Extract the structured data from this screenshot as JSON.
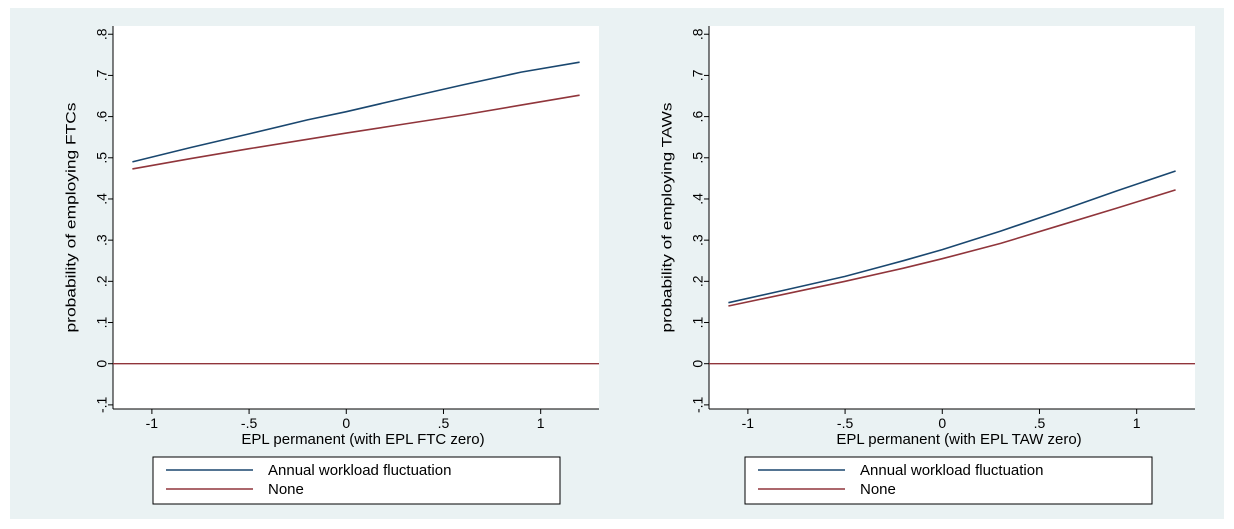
{
  "colors": {
    "figure_bg": "#eaf2f3",
    "plot_bg": "#ffffff",
    "series_annual": "#1a476f",
    "series_none": "#90353b",
    "axis": "#000000"
  },
  "chart_data": [
    {
      "type": "line",
      "xlabel": "EPL permanent (with EPL FTC zero)",
      "ylabel": "probability of employing FTCs",
      "xlim": [
        -1.2,
        1.3
      ],
      "ylim": [
        -0.11,
        0.82
      ],
      "xticks": [
        -1,
        -0.5,
        0,
        0.5,
        1
      ],
      "xtick_labels": [
        "-1",
        "-.5",
        "0",
        ".5",
        "1"
      ],
      "yticks": [
        -0.1,
        0,
        0.1,
        0.2,
        0.3,
        0.4,
        0.5,
        0.6,
        0.7,
        0.8
      ],
      "ytick_labels": [
        "-.1",
        "0",
        ".1",
        ".2",
        ".3",
        ".4",
        ".5",
        ".6",
        ".7",
        ".8"
      ],
      "reference_line_y": 0,
      "series": [
        {
          "name": "Annual workload fluctuation",
          "color": "#1a476f",
          "x": [
            -1.1,
            -0.8,
            -0.5,
            -0.2,
            0,
            0.3,
            0.6,
            0.9,
            1.2
          ],
          "y": [
            0.49,
            0.525,
            0.558,
            0.592,
            0.612,
            0.645,
            0.677,
            0.708,
            0.732
          ]
        },
        {
          "name": "None",
          "color": "#90353b",
          "x": [
            -1.1,
            -0.8,
            -0.5,
            -0.2,
            0,
            0.3,
            0.6,
            0.9,
            1.2
          ],
          "y": [
            0.473,
            0.498,
            0.522,
            0.545,
            0.56,
            0.582,
            0.604,
            0.628,
            0.652
          ]
        }
      ],
      "legend": {
        "position": "bottom",
        "entries": [
          "Annual workload fluctuation",
          "None"
        ]
      }
    },
    {
      "type": "line",
      "xlabel": "EPL permanent (with EPL TAW zero)",
      "ylabel": "probability of employing TAWs",
      "xlim": [
        -1.2,
        1.3
      ],
      "ylim": [
        -0.11,
        0.82
      ],
      "xticks": [
        -1,
        -0.5,
        0,
        0.5,
        1
      ],
      "xtick_labels": [
        "-1",
        "-.5",
        "0",
        ".5",
        "1"
      ],
      "yticks": [
        -0.1,
        0,
        0.1,
        0.2,
        0.3,
        0.4,
        0.5,
        0.6,
        0.7,
        0.8
      ],
      "ytick_labels": [
        "-.1",
        "0",
        ".1",
        ".2",
        ".3",
        ".4",
        ".5",
        ".6",
        ".7",
        ".8"
      ],
      "reference_line_y": 0,
      "series": [
        {
          "name": "Annual workload fluctuation",
          "color": "#1a476f",
          "x": [
            -1.1,
            -0.8,
            -0.5,
            -0.2,
            0,
            0.3,
            0.6,
            0.9,
            1.2
          ],
          "y": [
            0.148,
            0.18,
            0.212,
            0.25,
            0.277,
            0.322,
            0.37,
            0.42,
            0.468
          ]
        },
        {
          "name": "None",
          "color": "#90353b",
          "x": [
            -1.1,
            -0.8,
            -0.5,
            -0.2,
            0,
            0.3,
            0.6,
            0.9,
            1.2
          ],
          "y": [
            0.14,
            0.17,
            0.2,
            0.232,
            0.255,
            0.292,
            0.335,
            0.378,
            0.422
          ]
        }
      ],
      "legend": {
        "position": "bottom",
        "entries": [
          "Annual workload fluctuation",
          "None"
        ]
      }
    }
  ]
}
